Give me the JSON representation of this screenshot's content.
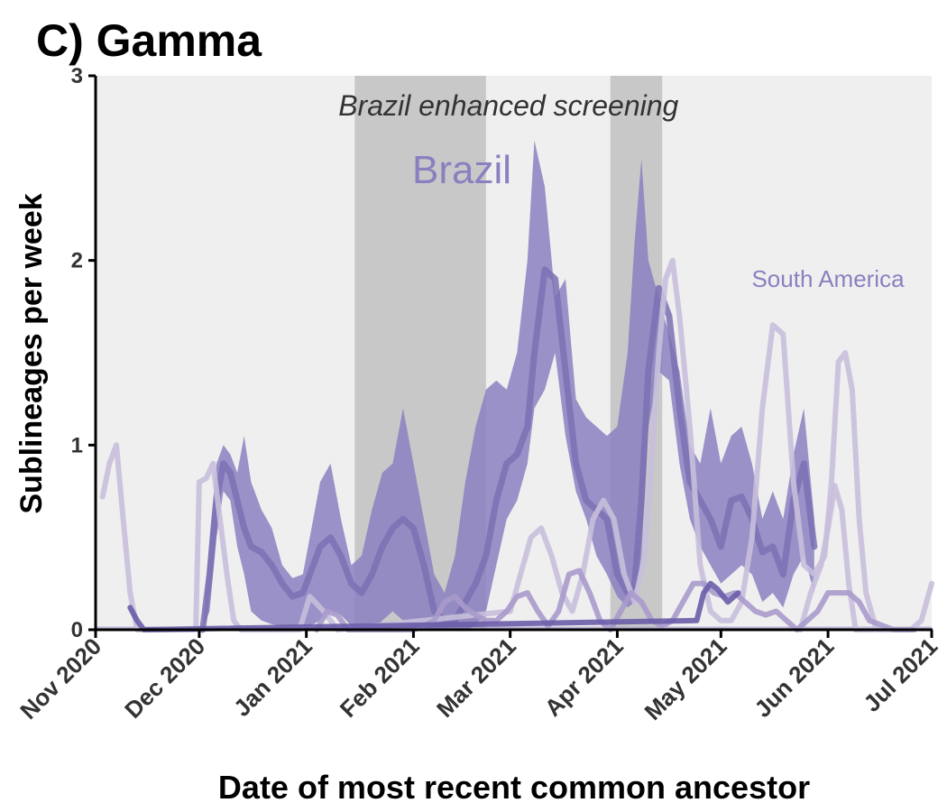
{
  "chart_data": {
    "type": "line",
    "title": "C) Gamma",
    "xlabel": "Date of most recent common ancestor",
    "ylabel": "Sublineages per week",
    "xlim": [
      "2020-11-01",
      "2021-07-01"
    ],
    "ylim": [
      0,
      3
    ],
    "yticks": [
      0,
      1,
      2,
      3
    ],
    "xticks": [
      {
        "date": "2020-11-01",
        "label": "Nov 2020"
      },
      {
        "date": "2020-12-01",
        "label": "Dec 2020"
      },
      {
        "date": "2021-01-01",
        "label": "Jan 2021"
      },
      {
        "date": "2021-02-01",
        "label": "Feb 2021"
      },
      {
        "date": "2021-03-01",
        "label": "Mar 2021"
      },
      {
        "date": "2021-04-01",
        "label": "Apr 2021"
      },
      {
        "date": "2021-05-01",
        "label": "May 2021"
      },
      {
        "date": "2021-06-01",
        "label": "Jun 2021"
      },
      {
        "date": "2021-07-01",
        "label": "Jul 2021"
      }
    ],
    "grid": false,
    "background": "#efefef",
    "shaded_periods": {
      "label": "Brazil enhanced screening",
      "color": "#c8c8c8",
      "periods": [
        [
          "2021-01-15",
          "2021-02-22"
        ],
        [
          "2021-03-30",
          "2021-04-14"
        ]
      ]
    },
    "series": [
      {
        "name": "Brazil",
        "color": "#8a80c0",
        "x": [
          "2020-12-02",
          "2020-12-04",
          "2020-12-06",
          "2020-12-08",
          "2020-12-10",
          "2020-12-12",
          "2020-12-14",
          "2020-12-16",
          "2020-12-19",
          "2020-12-22",
          "2020-12-25",
          "2020-12-28",
          "2020-12-31",
          "2021-01-02",
          "2021-01-05",
          "2021-01-08",
          "2021-01-11",
          "2021-01-14",
          "2021-01-17",
          "2021-01-20",
          "2021-01-23",
          "2021-01-26",
          "2021-01-29",
          "2021-02-01",
          "2021-02-04",
          "2021-02-07",
          "2021-02-10",
          "2021-02-13",
          "2021-02-16",
          "2021-02-19",
          "2021-02-22",
          "2021-02-25",
          "2021-02-28",
          "2021-03-03",
          "2021-03-06",
          "2021-03-08",
          "2021-03-11",
          "2021-03-14",
          "2021-03-17",
          "2021-03-20",
          "2021-03-23",
          "2021-03-26",
          "2021-03-29",
          "2021-04-01",
          "2021-04-04",
          "2021-04-06",
          "2021-04-08",
          "2021-04-10",
          "2021-04-13",
          "2021-04-16",
          "2021-04-19",
          "2021-04-22",
          "2021-04-25",
          "2021-04-28",
          "2021-05-01",
          "2021-05-04",
          "2021-05-07",
          "2021-05-10",
          "2021-05-13",
          "2021-05-16",
          "2021-05-19",
          "2021-05-22",
          "2021-05-25",
          "2021-05-28"
        ],
        "values": [
          0,
          0.3,
          0.7,
          0.9,
          0.85,
          0.7,
          0.55,
          0.45,
          0.42,
          0.35,
          0.25,
          0.18,
          0.2,
          0.3,
          0.45,
          0.5,
          0.4,
          0.25,
          0.2,
          0.3,
          0.45,
          0.55,
          0.6,
          0.55,
          0.35,
          0.1,
          0.05,
          0.05,
          0.15,
          0.25,
          0.4,
          0.7,
          0.9,
          0.95,
          1.1,
          1.5,
          1.95,
          1.9,
          1.4,
          0.9,
          0.7,
          0.65,
          0.6,
          0.3,
          0.2,
          0.25,
          0.7,
          1.4,
          1.85,
          1.7,
          1.2,
          0.8,
          0.7,
          0.6,
          0.45,
          0.7,
          0.72,
          0.6,
          0.42,
          0.45,
          0.3,
          0.7,
          0.9,
          0.45
        ],
        "lower": [
          0,
          0.1,
          0.5,
          0.75,
          0.7,
          0.45,
          0.3,
          0.1,
          0.05,
          0.03,
          0.02,
          0.02,
          0.02,
          0.02,
          0.05,
          0.1,
          0.08,
          0.02,
          0,
          0,
          0.05,
          0.1,
          0.05,
          0,
          0,
          0,
          0,
          0,
          0,
          0.02,
          0.1,
          0.35,
          0.6,
          0.7,
          0.9,
          1.2,
          1.3,
          1.5,
          1.05,
          0.75,
          0.6,
          0.4,
          0.3,
          0.18,
          0.12,
          0.15,
          0.4,
          1.1,
          1.4,
          1.35,
          0.9,
          0.6,
          0.45,
          0.35,
          0.25,
          0.3,
          0.35,
          0.3,
          0.15,
          0.2,
          0.12,
          0.3,
          0.4,
          0.2
        ],
        "upper": [
          0,
          0.5,
          0.9,
          1.0,
          0.95,
          0.85,
          1.05,
          0.8,
          0.65,
          0.55,
          0.35,
          0.28,
          0.3,
          0.5,
          0.8,
          0.9,
          0.6,
          0.35,
          0.4,
          0.65,
          0.85,
          0.9,
          1.2,
          0.9,
          0.6,
          0.3,
          0.2,
          0.4,
          0.8,
          1.1,
          1.3,
          1.35,
          1.3,
          1.5,
          2.0,
          2.65,
          2.4,
          1.8,
          1.9,
          1.25,
          1.15,
          1.1,
          1.05,
          1.1,
          1.5,
          2.1,
          2.55,
          2.0,
          1.8,
          1.6,
          1.4,
          1.0,
          0.9,
          1.2,
          0.9,
          1.05,
          1.1,
          0.9,
          0.6,
          0.75,
          0.6,
          0.95,
          1.2,
          0.6
        ]
      },
      {
        "name": "South America",
        "color": "#c8bfdc",
        "x": [
          "2020-11-03",
          "2020-11-05",
          "2020-11-07",
          "2020-11-09",
          "2020-11-11",
          "2020-11-13",
          "2020-11-16",
          "2020-11-30",
          "2020-12-01",
          "2020-12-03",
          "2020-12-05",
          "2020-12-07",
          "2020-12-09",
          "2020-12-11",
          "2020-12-13",
          "2020-12-16",
          "2020-12-30",
          "2021-01-02",
          "2021-01-06",
          "2021-01-10",
          "2021-03-01",
          "2021-03-04",
          "2021-03-07",
          "2021-03-10",
          "2021-03-13",
          "2021-03-16",
          "2021-03-19",
          "2021-03-22",
          "2021-03-25",
          "2021-03-28",
          "2021-03-31",
          "2021-04-03",
          "2021-04-06",
          "2021-04-09",
          "2021-04-11",
          "2021-04-13",
          "2021-04-15",
          "2021-04-17",
          "2021-04-19",
          "2021-04-22",
          "2021-04-25",
          "2021-04-28",
          "2021-05-01",
          "2021-05-04",
          "2021-05-07",
          "2021-05-10",
          "2021-05-13",
          "2021-05-16",
          "2021-05-19",
          "2021-05-22",
          "2021-05-25",
          "2021-05-28",
          "2021-05-31",
          "2021-06-02",
          "2021-06-04",
          "2021-06-06",
          "2021-06-08",
          "2021-06-10",
          "2021-06-12",
          "2021-06-15",
          "2021-06-18",
          "2021-06-21",
          "2021-06-25",
          "2021-06-28",
          "2021-07-01"
        ],
        "values": [
          0.72,
          0.9,
          1.0,
          0.6,
          0.2,
          0,
          0,
          0,
          0.8,
          0.82,
          0.9,
          0.6,
          0.3,
          0.05,
          0,
          0,
          0,
          0.18,
          0.1,
          0,
          0.1,
          0.3,
          0.5,
          0.55,
          0.4,
          0.2,
          0.1,
          0.3,
          0.6,
          0.7,
          0.6,
          0.3,
          0.15,
          0.4,
          0.95,
          1.5,
          1.9,
          2.0,
          1.7,
          1.1,
          0.35,
          0.1,
          0.05,
          0.05,
          0.15,
          0.5,
          1.2,
          1.65,
          1.6,
          0.8,
          0.35,
          0.3,
          0.4,
          0.8,
          1.45,
          1.5,
          1.3,
          0.6,
          0.2,
          0,
          0,
          0,
          0,
          0.05,
          0.25
        ]
      },
      {
        "name": "",
        "color": "#c8bfdc",
        "x": [
          "2021-05-24",
          "2021-05-27",
          "2021-05-30",
          "2021-06-01",
          "2021-06-03",
          "2021-06-05",
          "2021-06-07",
          "2021-06-09",
          "2021-06-11",
          "2021-06-14"
        ],
        "values": [
          0,
          0.2,
          0.35,
          0.55,
          0.78,
          0.65,
          0.25,
          0,
          0,
          0
        ]
      },
      {
        "name": "",
        "color": "#a99acb",
        "x": [
          "2021-01-04",
          "2021-01-07",
          "2021-01-10",
          "2021-01-13",
          "2021-02-01",
          "2021-02-04",
          "2021-02-07",
          "2021-02-10",
          "2021-02-13",
          "2021-02-16",
          "2021-02-19",
          "2021-02-22",
          "2021-02-25",
          "2021-02-28",
          "2021-03-03",
          "2021-03-06",
          "2021-03-09",
          "2021-03-12",
          "2021-03-15",
          "2021-03-18",
          "2021-03-21",
          "2021-03-24",
          "2021-03-27",
          "2021-03-30",
          "2021-04-02",
          "2021-04-05",
          "2021-04-08",
          "2021-04-11",
          "2021-04-14",
          "2021-04-17",
          "2021-04-20",
          "2021-04-23",
          "2021-04-26",
          "2021-04-29",
          "2021-05-02",
          "2021-05-05",
          "2021-05-08",
          "2021-05-11",
          "2021-05-14",
          "2021-05-17",
          "2021-05-20",
          "2021-05-23",
          "2021-05-26",
          "2021-05-29",
          "2021-06-01",
          "2021-06-04",
          "2021-06-07",
          "2021-06-10",
          "2021-06-13",
          "2021-06-20",
          "2021-06-26"
        ],
        "values": [
          0,
          0.1,
          0.08,
          0,
          0,
          0.02,
          0.05,
          0.15,
          0.18,
          0.12,
          0.08,
          0.05,
          0.05,
          0.1,
          0.18,
          0.2,
          0.1,
          0.02,
          0.1,
          0.3,
          0.32,
          0.2,
          0.05,
          0,
          0.1,
          0.2,
          0.15,
          0.05,
          0.02,
          0.05,
          0.15,
          0.25,
          0.25,
          0.2,
          0.18,
          0.2,
          0.15,
          0.1,
          0.08,
          0.1,
          0.05,
          0,
          0.05,
          0.1,
          0.2,
          0.2,
          0.2,
          0.15,
          0.05,
          0,
          0
        ]
      },
      {
        "name": "",
        "color": "#6a5ca8",
        "x": [
          "2020-11-11",
          "2020-11-13",
          "2020-11-15",
          "2021-04-24",
          "2021-04-26",
          "2021-04-28",
          "2021-04-30",
          "2021-05-03",
          "2021-05-06"
        ],
        "values": [
          0.12,
          0.05,
          0,
          0.05,
          0.2,
          0.25,
          0.22,
          0.15,
          0.2
        ]
      }
    ],
    "annotations": [
      {
        "text": "Brazil",
        "color": "#8a80c0"
      },
      {
        "text": "South America",
        "color": "#8a80c0"
      }
    ]
  }
}
